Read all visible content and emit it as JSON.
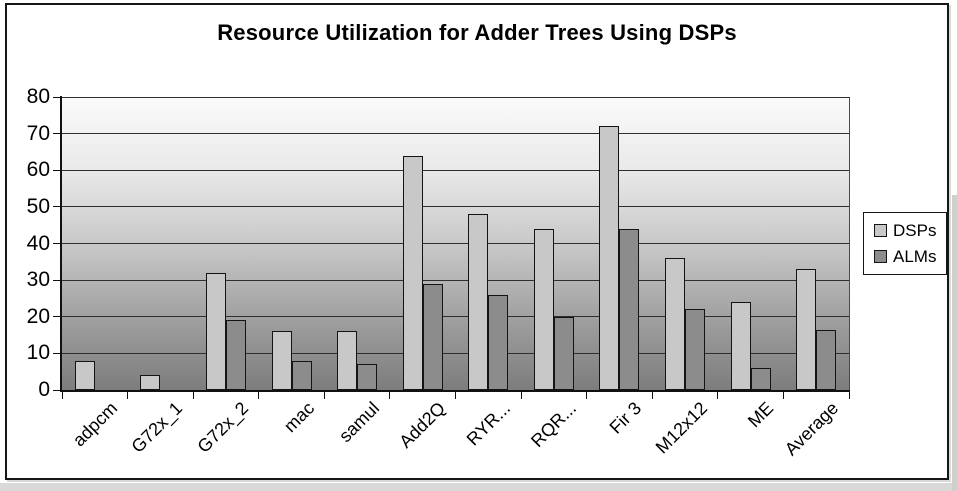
{
  "chart_data": {
    "type": "bar",
    "title": "Resource Utilization for Adder Trees Using DSPs",
    "categories": [
      "adpcm",
      "G72x_1",
      "G72x_2",
      "mac",
      "samul",
      "Add2Q",
      "RYR...",
      "RQR...",
      "Fir 3",
      "M12x12",
      "ME",
      "Average"
    ],
    "series": [
      {
        "name": "DSPs",
        "color": "#c8c8c8",
        "values": [
          8,
          4,
          32,
          16,
          16,
          64,
          48,
          44,
          72,
          36,
          24,
          33
        ]
      },
      {
        "name": "ALMs",
        "color": "#8c8c8c",
        "values": [
          0,
          0,
          19,
          8,
          7,
          29,
          26,
          20,
          44,
          22,
          6,
          16.5
        ]
      }
    ],
    "xlabel": "",
    "ylabel": "",
    "ylim": [
      0,
      80
    ],
    "yticks": [
      0,
      10,
      20,
      30,
      40,
      50,
      60,
      70,
      80
    ],
    "grid": true,
    "legend_position": "right",
    "plot_background": {
      "top": "#fbfbfb",
      "bottom": "#7d7d7d"
    }
  }
}
